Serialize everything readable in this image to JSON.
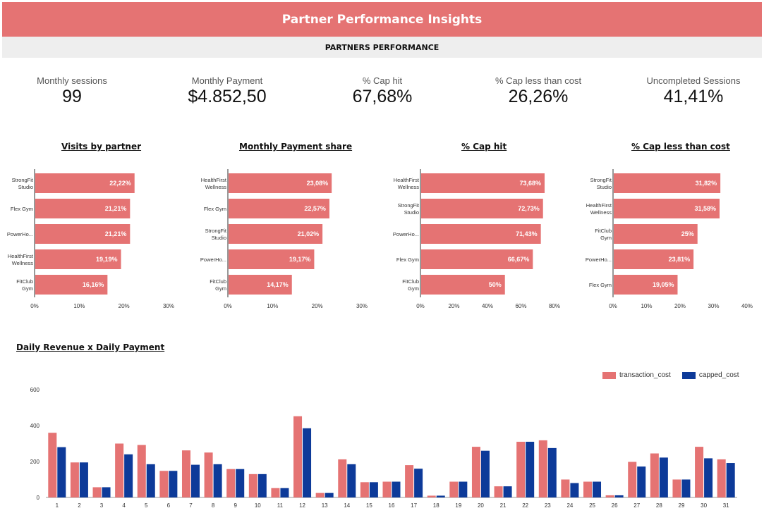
{
  "header": {
    "title": "Partner Performance Insights",
    "section": "PARTNERS PERFORMANCE"
  },
  "kpis": [
    {
      "label": "Monthly sessions",
      "value": "99"
    },
    {
      "label": "Monthly Payment",
      "value": "$4.852,50"
    },
    {
      "label": "% Cap hit",
      "value": "67,68%"
    },
    {
      "label": "% Cap less than cost",
      "value": "26,26%"
    },
    {
      "label": "Uncompleted Sessions",
      "value": "41,41%"
    }
  ],
  "colors": {
    "accent": "#e57373",
    "secondary": "#0d3a99",
    "section_bg": "#eeeeee"
  },
  "chart_data": [
    {
      "type": "bar",
      "orientation": "horizontal",
      "title": "Visits by partner",
      "categories": [
        [
          "StrongFit",
          "Studio"
        ],
        [
          "Flex Gym"
        ],
        [
          "PowerHo..."
        ],
        [
          "HealthFirst",
          "Wellness"
        ],
        [
          "FitClub",
          "Gym"
        ]
      ],
      "values": [
        22.22,
        21.21,
        21.21,
        19.19,
        16.16
      ],
      "labels": [
        "22,22%",
        "21,21%",
        "21,21%",
        "19,19%",
        "16,16%"
      ],
      "xlim": [
        0,
        30
      ],
      "ticks": [
        "0%",
        "10%",
        "20%",
        "30%"
      ]
    },
    {
      "type": "bar",
      "orientation": "horizontal",
      "title": "Monthly Payment share",
      "categories": [
        [
          "HealthFirst",
          "Wellness"
        ],
        [
          "Flex Gym"
        ],
        [
          "StrongFit",
          "Studio"
        ],
        [
          "PowerHo..."
        ],
        [
          "FitClub",
          "Gym"
        ]
      ],
      "values": [
        23.08,
        22.57,
        21.02,
        19.17,
        14.17
      ],
      "labels": [
        "23,08%",
        "22,57%",
        "21,02%",
        "19,17%",
        "14,17%"
      ],
      "xlim": [
        0,
        30
      ],
      "ticks": [
        "0%",
        "10%",
        "20%",
        "30%"
      ]
    },
    {
      "type": "bar",
      "orientation": "horizontal",
      "title": "% Cap hit",
      "categories": [
        [
          "HealthFirst",
          "Wellness"
        ],
        [
          "StrongFit",
          "Studio"
        ],
        [
          "PowerHo..."
        ],
        [
          "Flex Gym"
        ],
        [
          "FitClub",
          "Gym"
        ]
      ],
      "values": [
        73.68,
        72.73,
        71.43,
        66.67,
        50
      ],
      "labels": [
        "73,68%",
        "72,73%",
        "71,43%",
        "66,67%",
        "50%"
      ],
      "xlim": [
        0,
        80
      ],
      "ticks": [
        "0%",
        "20%",
        "40%",
        "60%",
        "80%"
      ]
    },
    {
      "type": "bar",
      "orientation": "horizontal",
      "title": "% Cap less than cost",
      "categories": [
        [
          "StrongFit",
          "Studio"
        ],
        [
          "HealthFirst",
          "Wellness"
        ],
        [
          "FitClub",
          "Gym"
        ],
        [
          "PowerHo..."
        ],
        [
          "Flex Gym"
        ]
      ],
      "values": [
        31.82,
        31.58,
        25,
        23.81,
        19.05
      ],
      "labels": [
        "31,82%",
        "31,58%",
        "25%",
        "23,81%",
        "19,05%"
      ],
      "xlim": [
        0,
        40
      ],
      "ticks": [
        "0%",
        "10%",
        "20%",
        "30%",
        "40%"
      ]
    },
    {
      "type": "bar",
      "title": "Daily Revenue x Daily Payment",
      "categories": [
        "1",
        "2",
        "3",
        "4",
        "5",
        "6",
        "7",
        "8",
        "9",
        "10",
        "11",
        "12",
        "13",
        "14",
        "15",
        "16",
        "17",
        "18",
        "19",
        "20",
        "21",
        "22",
        "23",
        "24",
        "25",
        "26",
        "27",
        "28",
        "29",
        "30",
        "31"
      ],
      "series": [
        {
          "name": "transaction_cost",
          "color": "#e57373",
          "values": [
            360,
            195,
            57,
            300,
            292,
            148,
            262,
            250,
            158,
            130,
            52,
            452,
            25,
            212,
            85,
            88,
            180,
            10,
            88,
            282,
            62,
            310,
            318,
            100,
            88,
            12,
            198,
            245,
            100,
            282,
            212
          ]
        },
        {
          "name": "capped_cost",
          "color": "#0d3a99",
          "values": [
            280,
            195,
            57,
            240,
            185,
            148,
            182,
            185,
            158,
            130,
            52,
            385,
            25,
            185,
            85,
            88,
            160,
            10,
            88,
            260,
            62,
            310,
            275,
            80,
            88,
            12,
            172,
            222,
            100,
            218,
            192
          ]
        }
      ],
      "ylim": [
        0,
        600
      ],
      "yticks": [
        "0",
        "200",
        "400",
        "600"
      ],
      "legend": "top-right"
    }
  ]
}
